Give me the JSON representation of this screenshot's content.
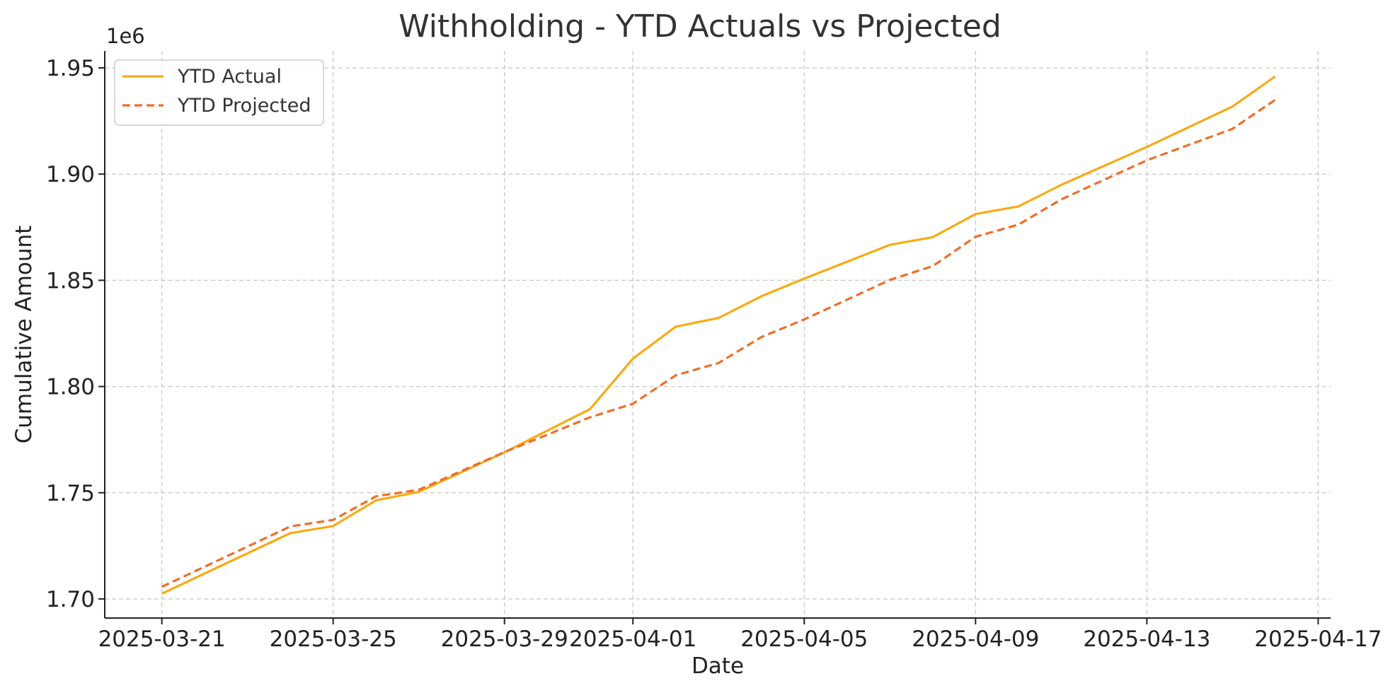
{
  "chart_data": {
    "type": "line",
    "title": "Withholding - YTD Actuals vs Projected",
    "xlabel": "Date",
    "ylabel": "Cumulative Amount",
    "y_offset_label": "1e6",
    "x_ticks": [
      "2025-03-21",
      "2025-03-25",
      "2025-03-29",
      "2025-04-01",
      "2025-04-05",
      "2025-04-09",
      "2025-04-13",
      "2025-04-17"
    ],
    "y_ticks": [
      "1.70",
      "1.75",
      "1.80",
      "1.85",
      "1.90",
      "1.95"
    ],
    "xlim": [
      "2025-03-19T16:00",
      "2025-04-17T07:00"
    ],
    "ylim": [
      1.691,
      1.958
    ],
    "grid": true,
    "legend": "top-left",
    "series": [
      {
        "name": "YTD Actual",
        "color": "#F9AA14",
        "style": "solid",
        "x": [
          "2025-03-21",
          "2025-03-24",
          "2025-03-25",
          "2025-03-26",
          "2025-03-27",
          "2025-03-29",
          "2025-03-31",
          "2025-04-01",
          "2025-04-02",
          "2025-04-03",
          "2025-04-04",
          "2025-04-05",
          "2025-04-07",
          "2025-04-08",
          "2025-04-09",
          "2025-04-10",
          "2025-04-11",
          "2025-04-13",
          "2025-04-15",
          "2025-04-16"
        ],
        "y": [
          1.7025,
          1.731,
          1.7343,
          1.7464,
          1.7504,
          1.769,
          1.7894,
          1.8131,
          1.8282,
          1.8323,
          1.8425,
          1.8508,
          1.8667,
          1.8703,
          1.8812,
          1.8848,
          1.8949,
          1.9128,
          1.9318,
          1.946
        ]
      },
      {
        "name": "YTD Projected",
        "color": "#EE6E2B",
        "style": "dashed",
        "x": [
          "2025-03-21",
          "2025-03-24",
          "2025-03-25",
          "2025-03-26",
          "2025-03-27",
          "2025-03-29",
          "2025-03-31",
          "2025-04-01",
          "2025-04-02",
          "2025-04-03",
          "2025-04-04",
          "2025-04-05",
          "2025-04-07",
          "2025-04-08",
          "2025-04-09",
          "2025-04-10",
          "2025-04-11",
          "2025-04-13",
          "2025-04-15",
          "2025-04-16"
        ],
        "y": [
          1.7057,
          1.7341,
          1.7372,
          1.7483,
          1.7514,
          1.7691,
          1.7855,
          1.7919,
          1.8053,
          1.8111,
          1.8233,
          1.8316,
          1.8502,
          1.8567,
          1.8705,
          1.8762,
          1.8881,
          1.9065,
          1.9213,
          1.935
        ]
      }
    ]
  }
}
